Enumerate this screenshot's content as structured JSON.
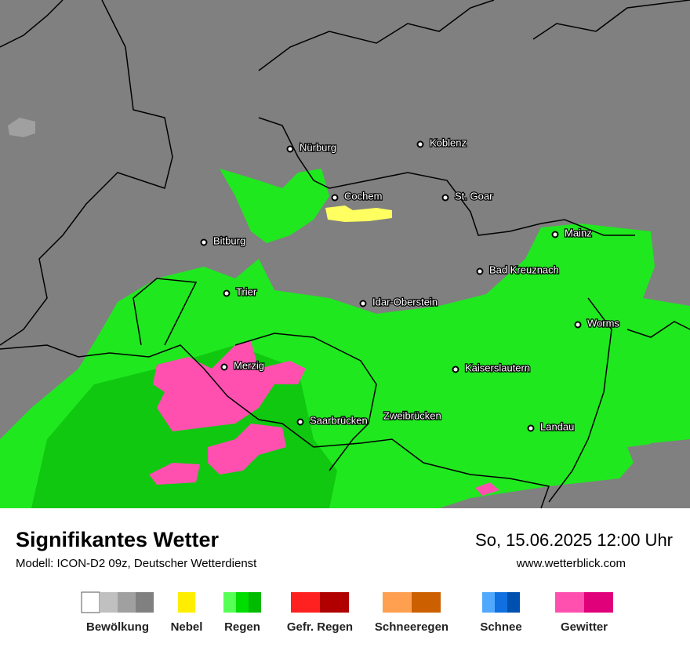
{
  "map": {
    "cities": [
      "Nürburg",
      "Koblenz",
      "Cochem",
      "St. Goar",
      "Bitburg",
      "Mainz",
      "Bad Kreuznach",
      "Trier",
      "Idar-Oberstein",
      "Worms",
      "Merzig",
      "Kaiserslautern",
      "Saarbrücken",
      "Zweibrücken",
      "Landau"
    ]
  },
  "footer": {
    "title": "Signifikantes Wetter",
    "subtitle": "Modell: ICON-D2 09z, Deutscher Wetterdienst",
    "date": "So, 15.06.2025 12:00 Uhr",
    "url": "www.wetterblick.com"
  },
  "legend": {
    "labels": [
      "Bewölkung",
      "Nebel",
      "Regen",
      "Gefr. Regen",
      "Schneeregen",
      "Schnee",
      "Gewitter"
    ]
  }
}
